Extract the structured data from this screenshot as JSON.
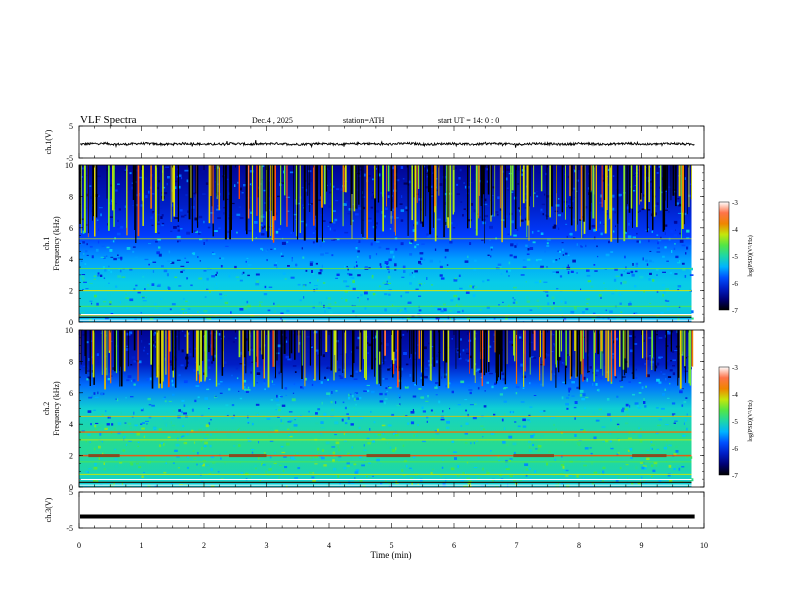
{
  "header": {
    "title": "VLF  Spectra",
    "date": "Dec.4  , 2025",
    "station": "station=ATH",
    "start_time": "start  UT  =   14: 0  : 0"
  },
  "chart_data": [
    {
      "type": "line",
      "name": "ch1-waveform",
      "ylabel": "ch.1(V)",
      "ylim": [
        -5,
        5
      ],
      "yticks": [
        "5",
        "-5"
      ],
      "xlim": [
        0,
        10
      ],
      "baseline": -0.6,
      "amplitude": 0.35
    },
    {
      "type": "heatmap",
      "name": "ch1-spectrogram",
      "ylabel": "ch.1\nFrequency (kHz)",
      "ylim": [
        0,
        10
      ],
      "yticks": [
        "0",
        "2",
        "4",
        "6",
        "8",
        "10"
      ],
      "xlim": [
        0,
        10
      ],
      "data_end_min": 9.8,
      "colorbar": {
        "label": "log(PSD)(V²/Hz)",
        "range": [
          -7,
          -3
        ],
        "ticks": [
          "-3",
          "-4",
          "-5",
          "-6",
          "-7"
        ]
      }
    },
    {
      "type": "heatmap",
      "name": "ch2-spectrogram",
      "ylabel": "ch.2\nFrequency (kHz)",
      "ylim": [
        0,
        10
      ],
      "yticks": [
        "0",
        "2",
        "4",
        "6",
        "8",
        "10"
      ],
      "xlim": [
        0,
        10
      ],
      "data_end_min": 9.8,
      "colorbar": {
        "label": "log(PSD)(V²/Hz)",
        "range": [
          -7,
          -3
        ],
        "ticks": [
          "-3",
          "-4",
          "-5",
          "-6",
          "-7"
        ]
      }
    },
    {
      "type": "line",
      "name": "ch3-waveform",
      "ylabel": "ch.3(V)",
      "ylim": [
        -5,
        5
      ],
      "yticks": [
        "5",
        "-5"
      ],
      "xlim": [
        0,
        10
      ],
      "baseline": -1.8,
      "amplitude": 0
    }
  ],
  "x_axis": {
    "label": "Time  (min)",
    "ticks": [
      "0",
      "1",
      "2",
      "3",
      "4",
      "5",
      "6",
      "7",
      "8",
      "9",
      "10"
    ],
    "range": [
      0,
      10
    ]
  }
}
